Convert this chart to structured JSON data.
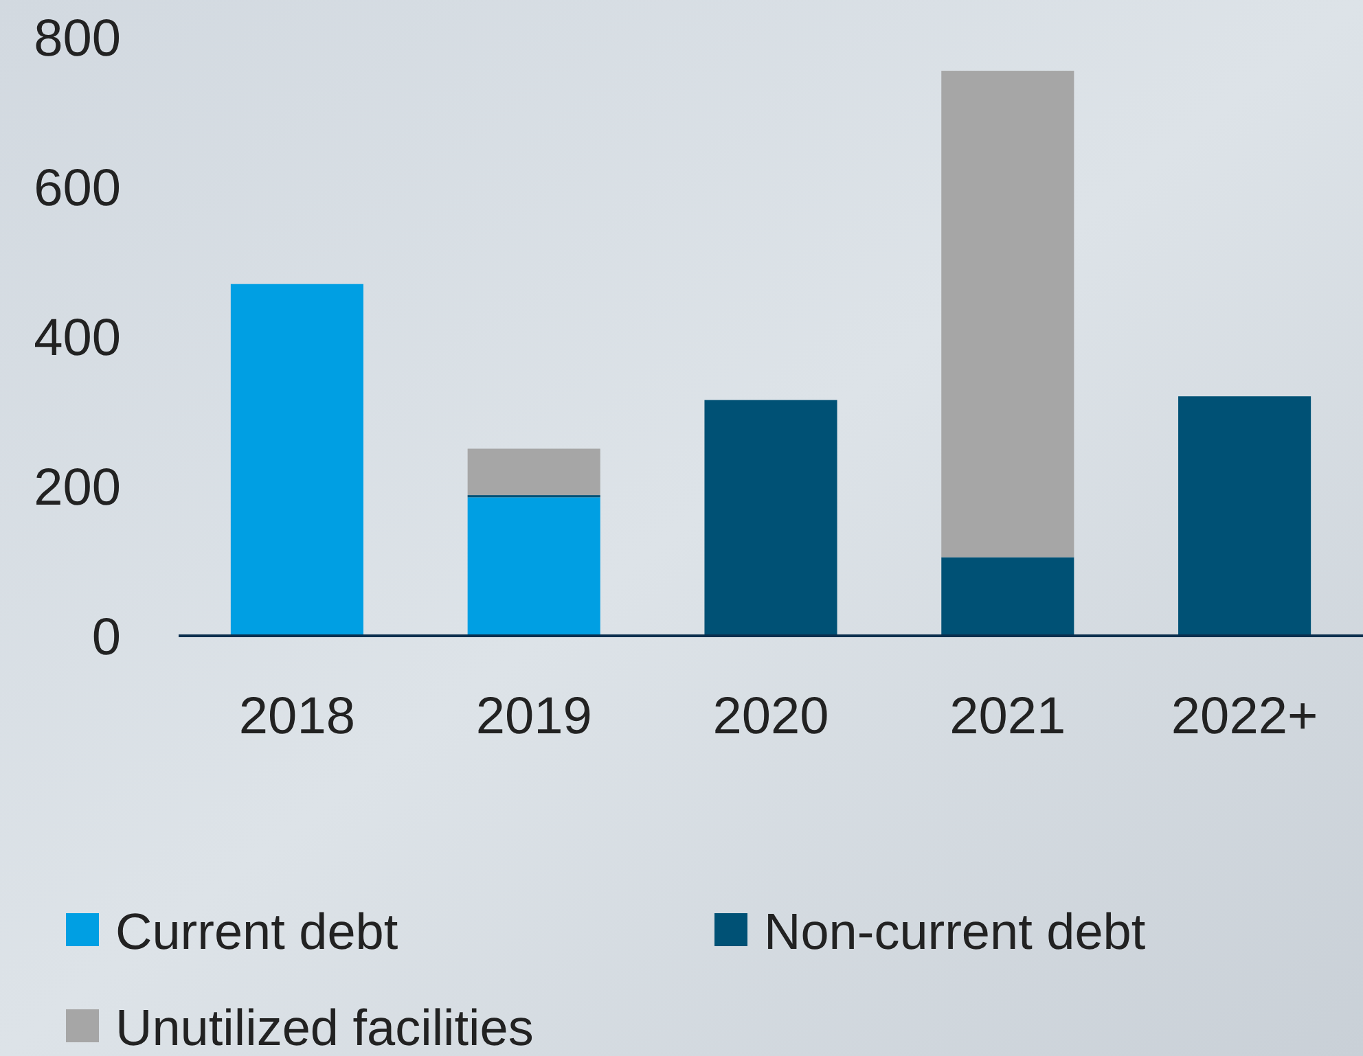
{
  "chart_data": {
    "type": "bar",
    "stacked": true,
    "categories": [
      "2018",
      "2019",
      "2020",
      "2021",
      "2022+"
    ],
    "series": [
      {
        "name": "Current debt",
        "color": "#009fe3",
        "values": [
          470,
          185,
          0,
          0,
          0
        ]
      },
      {
        "name": "Non-current debt",
        "color": "#005175",
        "values": [
          0,
          3,
          315,
          105,
          320
        ]
      },
      {
        "name": "Unutilized facilities",
        "color": "#a6a6a6",
        "values": [
          0,
          62,
          0,
          650,
          0
        ]
      }
    ],
    "ylim": [
      0,
      800
    ],
    "yticks": [
      0,
      200,
      400,
      600,
      800
    ],
    "grid": false,
    "legend": "bottom"
  }
}
